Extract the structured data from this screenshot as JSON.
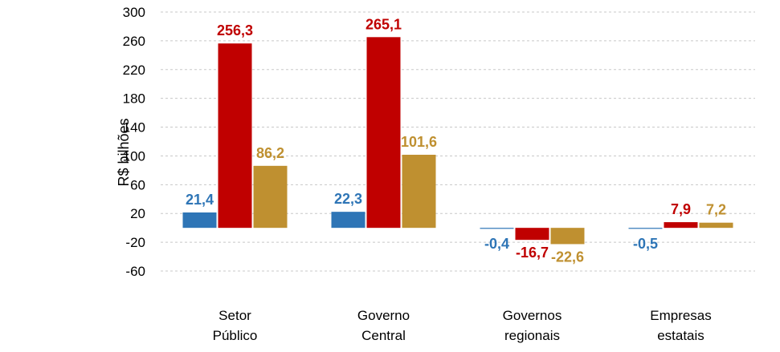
{
  "chart_data": {
    "type": "bar",
    "ylabel": "R$ bilhões",
    "ylim": [
      -60,
      300
    ],
    "yticks": [
      "300",
      "260",
      "220",
      "180",
      "140",
      "100",
      "60",
      "20",
      "-20",
      "-60"
    ],
    "ytick_values": [
      300,
      260,
      220,
      180,
      140,
      100,
      60,
      20,
      -20,
      -60
    ],
    "grid": true,
    "legend": "none",
    "categories": [
      [
        "Setor",
        "Público"
      ],
      [
        "Governo",
        "Central"
      ],
      [
        "Governos",
        "regionais"
      ],
      [
        "Empresas",
        "estatais"
      ]
    ],
    "series": [
      {
        "color": "#2e75b6",
        "values": [
          21.4,
          22.3,
          -0.4,
          -0.5
        ],
        "labels": [
          "21,4",
          "22,3",
          "-0,4",
          "-0,5"
        ]
      },
      {
        "color": "#c00000",
        "values": [
          256.3,
          265.1,
          -16.7,
          7.9
        ],
        "labels": [
          "256,3",
          "265,1",
          "-16,7",
          "7,9"
        ]
      },
      {
        "color": "#bf9030",
        "values": [
          86.2,
          101.6,
          -22.6,
          7.2
        ],
        "labels": [
          "86,2",
          "101,6",
          "-22,6",
          "7,2"
        ]
      }
    ]
  }
}
